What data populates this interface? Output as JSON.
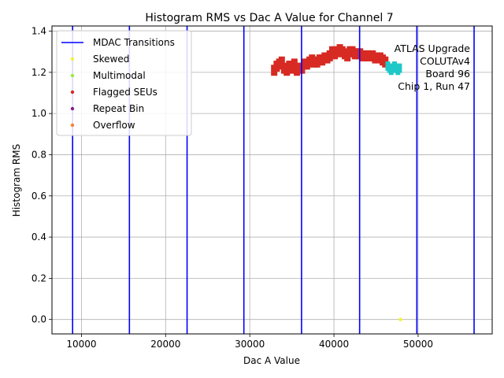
{
  "chart_data": {
    "type": "scatter",
    "title": "Histogram RMS vs Dac A Value for Channel 7",
    "xlabel": "Dac A Value",
    "ylabel": "Histogram RMS",
    "xlim": [
      6500,
      58800
    ],
    "ylim": [
      -0.07,
      1.425
    ],
    "xticks": [
      10000,
      20000,
      30000,
      40000,
      50000
    ],
    "xtick_labels": [
      "10000",
      "20000",
      "30000",
      "40000",
      "50000"
    ],
    "yticks": [
      0.0,
      0.2,
      0.4,
      0.6,
      0.8,
      1.0,
      1.2,
      1.4
    ],
    "ytick_labels": [
      "0.0",
      "0.2",
      "0.4",
      "0.6",
      "0.8",
      "1.0",
      "1.2",
      "1.4"
    ],
    "grid": true,
    "legend_position": "top-left",
    "annotation": [
      "ATLAS Upgrade",
      "COLUTAv4",
      "Board 96",
      "Chip 1, Run 47"
    ],
    "mdac_transitions": {
      "name": "MDAC Transitions",
      "color": "#0000ff",
      "x": [
        8950,
        15700,
        22550,
        29300,
        36150,
        43050,
        49850,
        56650
      ]
    },
    "legend_entries": [
      {
        "name": "MDAC Transitions",
        "kind": "line",
        "color": "#0000ff"
      },
      {
        "name": "Skewed",
        "kind": "point",
        "color": "#f2f230"
      },
      {
        "name": "Multimodal",
        "kind": "point",
        "color": "#9be83c"
      },
      {
        "name": "Flagged SEUs",
        "kind": "point",
        "color": "#d62a23"
      },
      {
        "name": "Repeat Bin",
        "kind": "point",
        "color": "#8b1a8b"
      },
      {
        "name": "Overflow",
        "kind": "point",
        "color": "#ff7f2a"
      }
    ],
    "series": [
      {
        "name": "Flagged SEUs",
        "color": "#d62a23",
        "x": [
          32900,
          33200,
          33500,
          33800,
          34100,
          34400,
          34700,
          35000,
          35300,
          35600,
          35900,
          36200,
          36500,
          36800,
          37100,
          37400,
          37700,
          38000,
          38300,
          38600,
          38900,
          39200,
          39500,
          39800,
          40100,
          40400,
          40700,
          41000,
          41300,
          41600,
          41900,
          42200,
          42500,
          42800,
          43100,
          43400,
          43700,
          44000,
          44300,
          44600,
          44900,
          45200,
          45500,
          45800,
          46100
        ],
        "y": [
          1.21,
          1.23,
          1.24,
          1.25,
          1.22,
          1.21,
          1.23,
          1.22,
          1.24,
          1.21,
          1.22,
          1.22,
          1.24,
          1.24,
          1.25,
          1.26,
          1.25,
          1.25,
          1.26,
          1.26,
          1.27,
          1.27,
          1.28,
          1.3,
          1.29,
          1.3,
          1.31,
          1.3,
          1.29,
          1.28,
          1.3,
          1.3,
          1.29,
          1.29,
          1.29,
          1.28,
          1.28,
          1.28,
          1.28,
          1.28,
          1.27,
          1.27,
          1.27,
          1.26,
          1.25
        ]
      },
      {
        "name": "",
        "color": "#1ec8c8",
        "x": [
          46400,
          46600,
          46800,
          47000,
          47200,
          47400,
          47600,
          47800
        ],
        "y": [
          1.23,
          1.22,
          1.21,
          1.22,
          1.23,
          1.22,
          1.21,
          1.22
        ]
      },
      {
        "name": "Skewed",
        "color": "#f2f230",
        "x": [
          47900
        ],
        "y": [
          0.0
        ]
      }
    ]
  }
}
